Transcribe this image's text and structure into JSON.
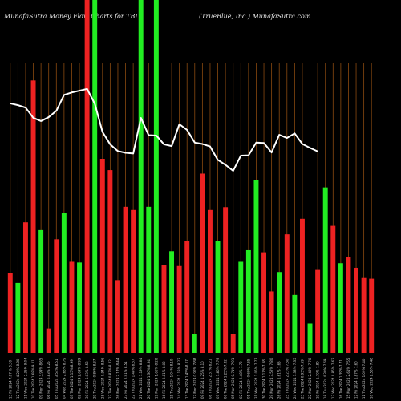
{
  "header": {
    "title_left": "MunafaSutra  Money Flow  Charts for TBI",
    "title_right": "(TrueBlue,  Inc.) MunafaSutra.com"
  },
  "colors": {
    "background": "#000000",
    "up": "#22ee22",
    "down": "#ee2222",
    "grid": "#8a4a10",
    "line": "#ffffff"
  },
  "chart_data": {
    "type": "bar",
    "title": "",
    "xlabel": "",
    "ylabel": "",
    "ylim": [
      0,
      100
    ],
    "categories": [
      "13 Fri 2024 7.07 % 8.30",
      "12 Thu 2024 4.28% 8.80",
      "11 Wed 2024 2.35% 9.04",
      "10 Tue 2024 1.68% 9.01",
      "09 Mon 2024 3.99% 8.65",
      "06 Fri 2024 0.83% 8.25",
      "05 Thu 2024 3.54% 8.51",
      "04 Wed 2024 2.68% 8.79",
      "03 Tue 2024 1.15% 8.99",
      "02 Mon 2024 2.69% 8.99",
      "30 Fri 2024 5.03% 8.53",
      "29 Thu 2024 0.86% 8.37",
      "28 Wed 2024 0.94% 8.56",
      "27 Tue 2024 0.87% 8.42",
      "26 Mon 2024 2.17% 8.44",
      "23 Fri 2024 2.91% 8.51",
      "22 Thu 2024 1.48% 8.37",
      "21 Wed 2024 7.19% 8.84",
      "20 Tue 2024 1.30% 8.34",
      "19 Mon 2024 1.66% 8.20",
      "16 Fri 2024 0.81% 8.02",
      "15 Thu 2024 1.04% 8.10",
      "14 Wed 2024 1.13% 8.22",
      "13 Tue 2024 1.45% 8.07",
      "12 Mon 2024 0.90% 7.88",
      "09 Fri 2024 1.25% 8.10",
      "08 Thu 2024 2.37% 8.21",
      "07 Wed 2024 1.86% 7.79",
      "06 Tue 2024 1.25% 7.82",
      "05 Mon 2024 0.71% 7.91",
      "02 Fri 2024 2.48% 7.72",
      "01 Thu 2024 0.69% 7.65",
      "31 Wed 2024 1.05% 7.77",
      "30 Tue 2024 1.17% 7.68",
      "29 Mon 2024 3.52% 7.80",
      "26 Fri 2024 1.61% 7.65",
      "25 Thu 2024 2.23% 7.50",
      "24 Wed 2024 1.38% 7.35",
      "23 Tue 2024 0.93% 7.59",
      "22 Mon 2024 2.40% 7.70",
      "19 Fri 2024 1.70% 7.80",
      "18 Thu 2024 4.30% 7.69",
      "17 Wed 2024 0.86% 7.62",
      "16 Tue 2024 1.39% 7.71",
      "15 Mon 2024 2.61% 7.55",
      "12 Fri 2024 1.87% 7.60",
      "11 Thu 2024 1.09% 7.40",
      "10 Wed 2024 2.53% 7.48"
    ],
    "series": [
      {
        "directions": [
          "down",
          "up",
          "down",
          "down",
          "up",
          "down",
          "down",
          "up",
          "down",
          "up",
          "down",
          "up",
          "down",
          "down",
          "down",
          "down",
          "down",
          "up",
          "up",
          "up",
          "down",
          "up",
          "down",
          "down",
          "up",
          "down",
          "down",
          "up",
          "down",
          "down",
          "up",
          "up",
          "up",
          "down",
          "down",
          "up",
          "down",
          "up",
          "down",
          "up",
          "down",
          "up",
          "down",
          "up",
          "down",
          "down",
          "down",
          "down"
        ],
        "values": [
          22.6,
          19.8,
          37.0,
          77.2,
          34.8,
          6.9,
          32.2,
          39.7,
          25.8,
          25.6,
          100,
          100,
          55.0,
          51.8,
          20.6,
          41.4,
          40.5,
          100,
          41.4,
          100,
          25.0,
          28.8,
          24.6,
          31.6,
          5.3,
          50.8,
          40.5,
          31.8,
          41.3,
          5.4,
          25.8,
          29.1,
          48.9,
          28.5,
          17.4,
          22.9,
          33.6,
          16.4,
          38.0,
          8.3,
          23.5,
          46.9,
          36.0,
          25.4,
          27.1,
          24.1,
          21.2,
          21.0
        ]
      },
      {
        "values": [
          70.7,
          70.2,
          69.5,
          66.6,
          65.7,
          66.8,
          68.6,
          73.1,
          73.8,
          74.3,
          74.8,
          70.6,
          62.6,
          59.1,
          57.2,
          56.7,
          56.5,
          66.6,
          61.7,
          61.6,
          59.1,
          58.6,
          64.8,
          63.2,
          59.6,
          59.2,
          58.5,
          54.7,
          53.3,
          51.6,
          55.9,
          56.0,
          59.6,
          59.5,
          56.8,
          61.8,
          60.9,
          62.2,
          59.2,
          58.1,
          57.1,
          0,
          0,
          0,
          0,
          0,
          0,
          0
        ]
      }
    ]
  }
}
